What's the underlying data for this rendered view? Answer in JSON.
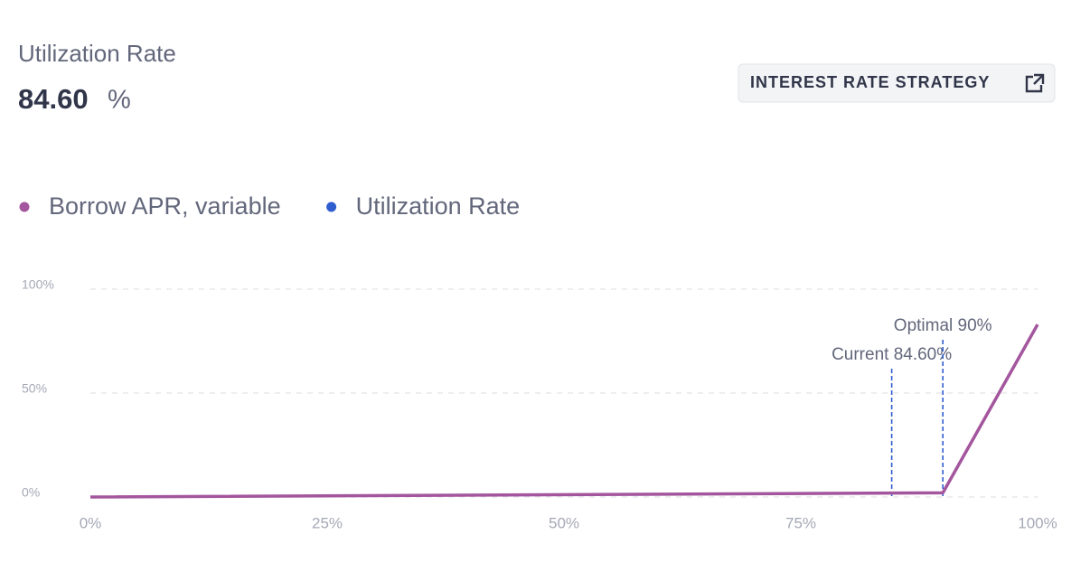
{
  "header": {
    "title": "Utilization Rate",
    "value": "84.60",
    "unit": "%",
    "button": "INTEREST RATE STRATEGY"
  },
  "chart_data": {
    "type": "line",
    "x": [
      0,
      90,
      100
    ],
    "series": [
      {
        "name": "Borrow APR, variable",
        "color": "#a3569d",
        "values": [
          0,
          2,
          83
        ]
      },
      {
        "name": "Utilization Rate",
        "color": "#2f5ed0"
      }
    ],
    "annotations": [
      {
        "label": "Current 84.60%",
        "x": 84.6
      },
      {
        "label": "Optimal 90%",
        "x": 90
      }
    ],
    "xlim": [
      0,
      100
    ],
    "xticks": [
      {
        "value": 0,
        "label": "0%"
      },
      {
        "value": 25,
        "label": "25%"
      },
      {
        "value": 50,
        "label": "50%"
      },
      {
        "value": 75,
        "label": "75%"
      },
      {
        "value": 100,
        "label": "100%"
      }
    ],
    "ylim": [
      0,
      100
    ],
    "yticks": [
      {
        "value": 0,
        "label": "0%"
      },
      {
        "value": 50,
        "label": "50%"
      },
      {
        "value": 100,
        "label": "100%"
      }
    ],
    "grid": true
  }
}
